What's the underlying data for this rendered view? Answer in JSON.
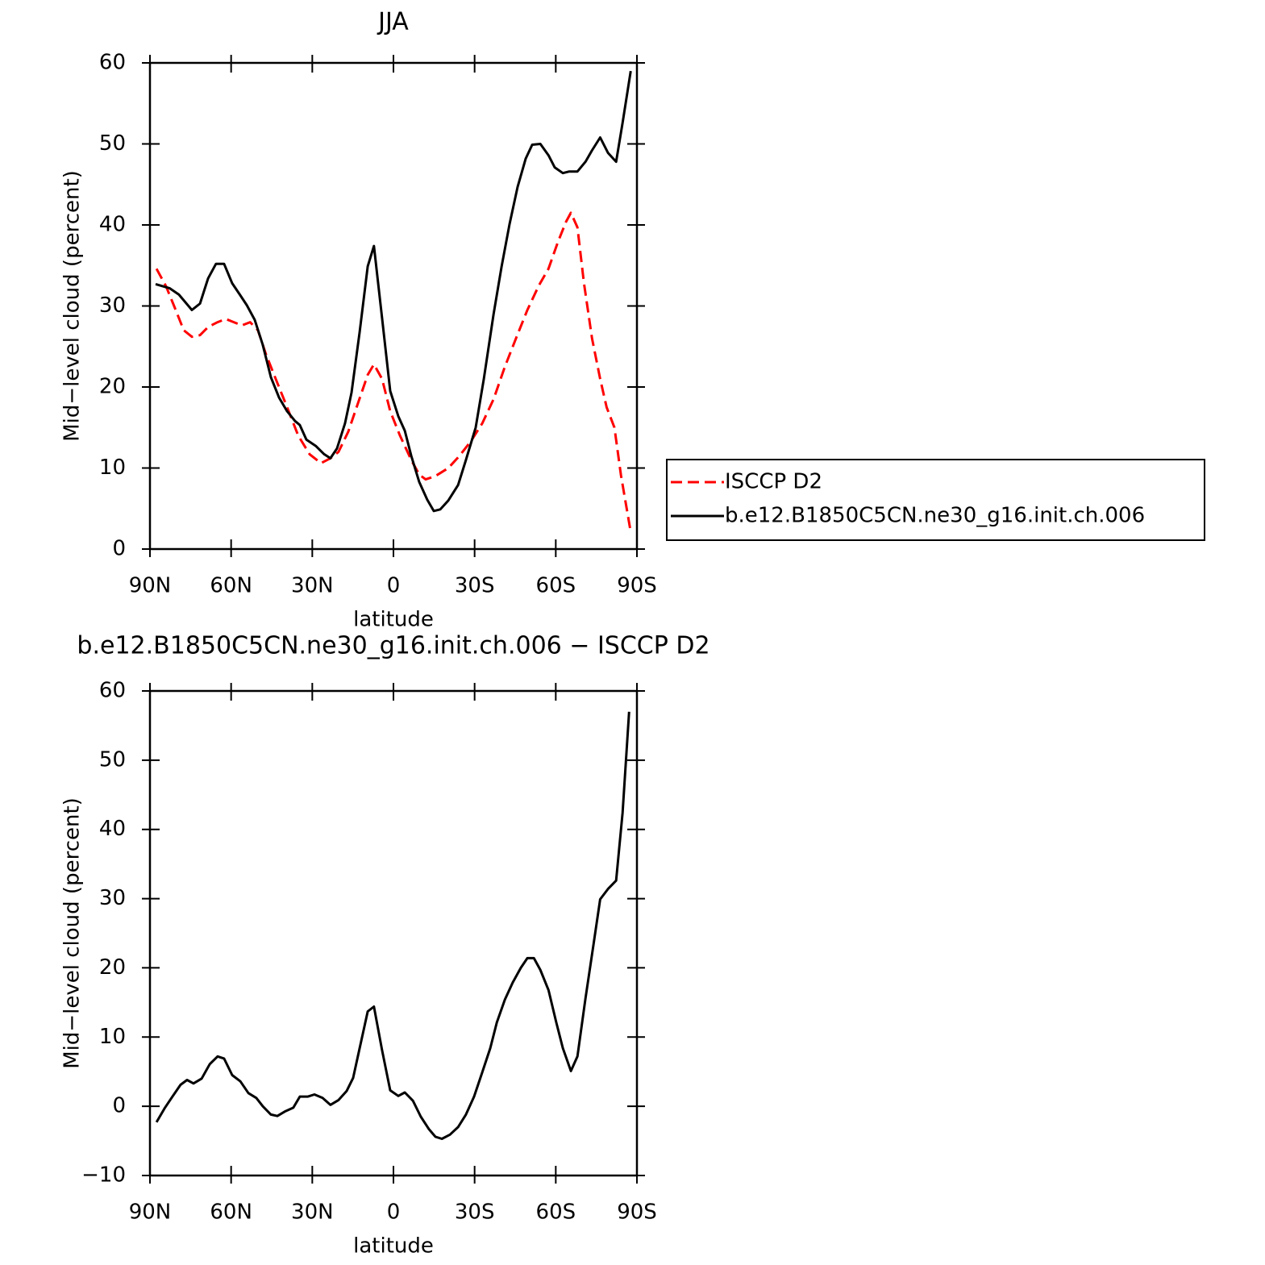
{
  "chart_data": [
    {
      "type": "line",
      "title": "JJA",
      "xlabel": "latitude",
      "ylabel": "Mid−level cloud (percent)",
      "xlim": [
        90,
        -90
      ],
      "xticks": [
        {
          "value": 90,
          "label": "90N"
        },
        {
          "value": 60,
          "label": "60N"
        },
        {
          "value": 30,
          "label": "30N"
        },
        0,
        {
          "value": -30,
          "label": "30S"
        },
        {
          "value": -60,
          "label": "60S"
        },
        {
          "value": -90,
          "label": "90S"
        }
      ],
      "ylim": [
        0,
        60
      ],
      "yticks": [
        0,
        10,
        20,
        30,
        40,
        50,
        60
      ],
      "legend": "right",
      "series": [
        {
          "name": "ISCCP D2",
          "color": "#ff0000",
          "linestyle": "dashed",
          "x": [
            87.6,
            84.0,
            81.1,
            77.5,
            74.5,
            71.5,
            68.5,
            65.0,
            62.0,
            59.0,
            56.0,
            53.0,
            50.1,
            47.1,
            43.5,
            39.3,
            35.2,
            31.0,
            26.8,
            23.3,
            20.3,
            16.7,
            13.1,
            9.5,
            7.2,
            4.2,
            1.2,
            -2.4,
            -6.6,
            -9.5,
            -11.9,
            -15.5,
            -20.3,
            -24.4,
            -28.6,
            -32.8,
            -37.0,
            -41.2,
            -45.3,
            -49.5,
            -53.7,
            -57.3,
            -60.8,
            -63.8,
            -65.6,
            -68.0,
            -70.4,
            -73.4,
            -76.4,
            -78.8,
            -81.7,
            -84.1,
            -87.7
          ],
          "values": [
            34.6,
            32.4,
            30.0,
            27.0,
            26.2,
            26.4,
            27.4,
            28.0,
            28.4,
            28.0,
            27.6,
            28.0,
            27.0,
            24.0,
            21.0,
            17.5,
            14.0,
            11.7,
            10.6,
            11.2,
            12.0,
            14.5,
            18.0,
            21.5,
            22.8,
            21.0,
            17.0,
            14.0,
            11.0,
            9.2,
            8.6,
            9.0,
            10.0,
            11.5,
            13.3,
            15.5,
            18.5,
            22.5,
            26.0,
            29.5,
            32.5,
            34.6,
            37.9,
            40.4,
            41.5,
            39.7,
            32.9,
            26.0,
            21.0,
            17.5,
            15.0,
            9.1,
            2.1
          ]
        },
        {
          "name": "b.e12.B1850C5CN.ne30_g16.init.ch.006",
          "color": "#000000",
          "linestyle": "solid",
          "x": [
            87.9,
            82.8,
            79.3,
            74.5,
            71.5,
            68.5,
            65.6,
            62.6,
            59.6,
            56.6,
            54.2,
            51.3,
            48.3,
            45.3,
            42.3,
            39.3,
            36.4,
            34.6,
            32.2,
            28.6,
            25.6,
            23.3,
            20.9,
            17.9,
            15.5,
            12.5,
            9.5,
            7.2,
            4.2,
            1.2,
            -1.8,
            -4.2,
            -6.6,
            -9.5,
            -12.5,
            -14.9,
            -17.3,
            -20.3,
            -23.9,
            -26.8,
            -30.4,
            -33.4,
            -37.0,
            -40.0,
            -42.9,
            -45.9,
            -48.9,
            -51.3,
            -54.3,
            -57.3,
            -59.6,
            -62.6,
            -65.0,
            -68.0,
            -71.0,
            -73.4,
            -76.4,
            -79.3,
            -82.3,
            -84.7,
            -87.7
          ],
          "values": [
            32.7,
            32.2,
            31.4,
            29.5,
            30.3,
            33.4,
            35.2,
            35.2,
            32.8,
            31.3,
            30.1,
            28.3,
            25.2,
            21.2,
            18.7,
            17.0,
            15.8,
            15.3,
            13.5,
            12.7,
            11.7,
            11.2,
            12.4,
            15.5,
            19.3,
            26.8,
            34.9,
            37.4,
            28.5,
            19.5,
            16.4,
            14.6,
            11.5,
            8.3,
            6.1,
            4.7,
            4.9,
            6.0,
            7.9,
            11.0,
            15.0,
            21.0,
            29.0,
            34.9,
            40.1,
            44.7,
            48.2,
            49.9,
            50.0,
            48.6,
            47.1,
            46.4,
            46.6,
            46.6,
            47.8,
            49.2,
            50.8,
            48.9,
            47.8,
            52.6,
            59.0
          ]
        }
      ]
    },
    {
      "type": "line",
      "title": "b.e12.B1850C5CN.ne30_g16.init.ch.006 − ISCCP D2",
      "xlabel": "latitude",
      "ylabel": "Mid−level cloud (percent)",
      "xlim": [
        90,
        -90
      ],
      "xticks": [
        {
          "value": 90,
          "label": "90N"
        },
        {
          "value": 60,
          "label": "60N"
        },
        {
          "value": 30,
          "label": "30N"
        },
        0,
        {
          "value": -30,
          "label": "30S"
        },
        {
          "value": -60,
          "label": "60S"
        },
        {
          "value": -90,
          "label": "90S"
        }
      ],
      "ylim": [
        -10,
        60
      ],
      "yticks": [
        {
          "value": -10,
          "label": "−10"
        },
        0,
        10,
        20,
        30,
        40,
        50,
        60
      ],
      "series": [
        {
          "color": "#000000",
          "linestyle": "solid",
          "x": [
            87.6,
            84.6,
            81.7,
            78.7,
            76.3,
            73.9,
            70.9,
            67.9,
            65.0,
            62.6,
            59.6,
            56.6,
            53.6,
            50.7,
            48.3,
            45.3,
            42.9,
            39.9,
            37.0,
            34.6,
            31.6,
            29.2,
            26.2,
            23.3,
            20.3,
            17.3,
            14.9,
            12.5,
            9.5,
            7.2,
            4.2,
            1.2,
            -1.8,
            -4.2,
            -7.2,
            -10.1,
            -13.1,
            -15.5,
            -17.9,
            -20.9,
            -23.9,
            -26.8,
            -29.8,
            -32.8,
            -35.8,
            -38.2,
            -41.2,
            -44.1,
            -47.1,
            -49.5,
            -51.9,
            -54.3,
            -57.3,
            -60.2,
            -62.6,
            -65.6,
            -68.0,
            -71.0,
            -74.0,
            -76.4,
            -79.3,
            -82.3,
            -84.7,
            -87.1
          ],
          "values": [
            -2.3,
            -0.3,
            1.4,
            3.1,
            3.8,
            3.3,
            4.0,
            6.1,
            7.2,
            6.9,
            4.5,
            3.6,
            1.9,
            1.2,
            0.0,
            -1.2,
            -1.4,
            -0.7,
            -0.2,
            1.4,
            1.4,
            1.7,
            1.2,
            0.2,
            0.9,
            2.2,
            4.1,
            8.4,
            13.7,
            14.4,
            8.1,
            2.3,
            1.5,
            2.0,
            0.8,
            -1.5,
            -3.3,
            -4.4,
            -4.7,
            -4.1,
            -3.0,
            -1.2,
            1.4,
            4.9,
            8.4,
            12.1,
            15.4,
            17.9,
            20.0,
            21.4,
            21.4,
            19.7,
            16.8,
            12.1,
            8.4,
            5.1,
            7.2,
            15.6,
            23.5,
            29.9,
            31.4,
            32.6,
            42.4,
            57.0
          ]
        }
      ]
    }
  ]
}
